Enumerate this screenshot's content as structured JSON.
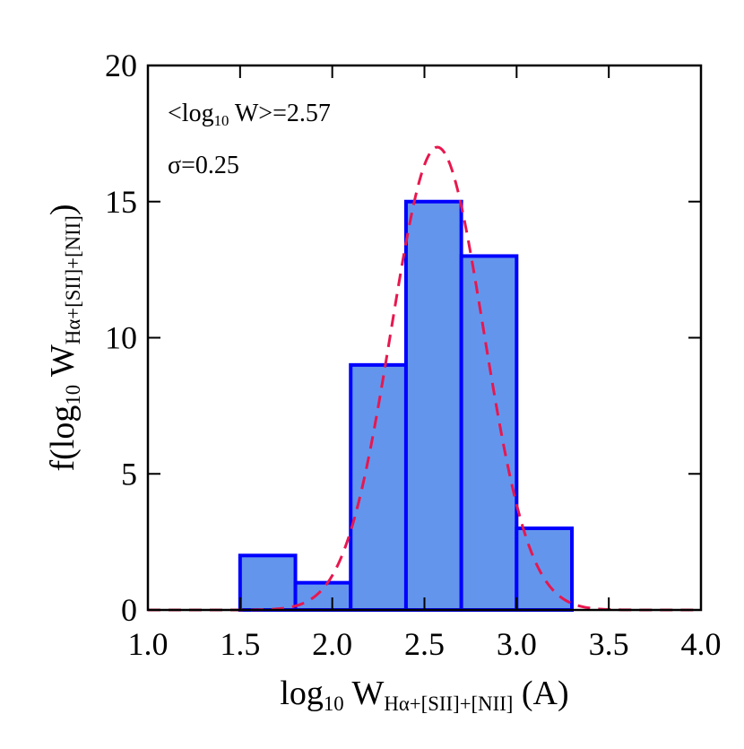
{
  "chart_data": {
    "type": "histogram",
    "bins": [
      1.5,
      1.8,
      2.1,
      2.4,
      2.7,
      3.0,
      3.3
    ],
    "values": [
      2,
      1,
      9,
      15,
      13,
      3
    ],
    "color": "#6495ed",
    "edge_color": "#0000ff",
    "fit": {
      "amplitude": 17,
      "mean": 2.57,
      "sigma": 0.25,
      "color": "#e8174e"
    },
    "xlim": [
      1.0,
      4.0
    ],
    "ylim": [
      0,
      20
    ],
    "xticks": [
      {
        "value": 1.0,
        "label": "1.0"
      },
      {
        "value": 1.5,
        "label": "1.5"
      },
      {
        "value": 2.0,
        "label": "2.0"
      },
      {
        "value": 2.5,
        "label": "2.5"
      },
      {
        "value": 3.0,
        "label": "3.0"
      },
      {
        "value": 3.5,
        "label": "3.5"
      },
      {
        "value": 4.0,
        "label": "4.0"
      }
    ],
    "yticks": [
      0,
      5,
      10,
      15,
      20
    ],
    "x_label": [
      "log",
      "10",
      " W",
      "Hα+[SII]+[NII]",
      " (A)"
    ],
    "y_label": [
      "f(log",
      "10",
      " W",
      "Hα+[SII]+[NII]",
      ")"
    ],
    "annotations": [
      [
        "<log",
        "10",
        " W>=2.57"
      ],
      [
        "σ=0.25"
      ]
    ]
  }
}
